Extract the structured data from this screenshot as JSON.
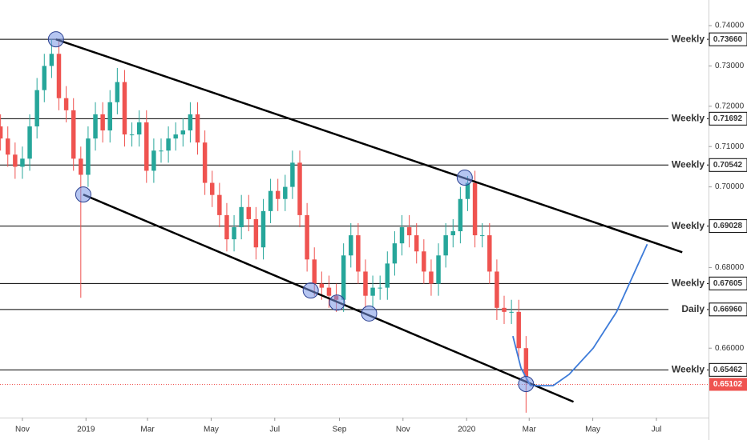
{
  "chart_data": {
    "type": "candlestick",
    "up_color": "#26a69a",
    "down_color": "#ef5350",
    "xlim": [
      -3.07,
      94
    ],
    "ylim": [
      0.64278,
      0.74635
    ],
    "xticks": [
      {
        "value": 0,
        "label": "Nov"
      },
      {
        "value": 8.71,
        "label": "2019"
      },
      {
        "value": 17.14,
        "label": "Mar"
      },
      {
        "value": 25.86,
        "label": "May"
      },
      {
        "value": 34.57,
        "label": "Jul"
      },
      {
        "value": 43.43,
        "label": "Sep"
      },
      {
        "value": 52.14,
        "label": "Nov"
      },
      {
        "value": 60.86,
        "label": "2020"
      },
      {
        "value": 69.43,
        "label": "Mar"
      },
      {
        "value": 78.14,
        "label": "May"
      },
      {
        "value": 86.86,
        "label": "Jul"
      }
    ],
    "yticks": [
      {
        "value": 0.74,
        "label": "0.74000"
      },
      {
        "value": 0.73,
        "label": "0.73000"
      },
      {
        "value": 0.72,
        "label": "0.72000"
      },
      {
        "value": 0.71,
        "label": "0.71000"
      },
      {
        "value": 0.7,
        "label": "0.70000"
      },
      {
        "value": 0.68,
        "label": "0.68000"
      },
      {
        "value": 0.66,
        "label": "0.66000"
      }
    ],
    "x": [
      -3,
      -2,
      -1,
      0,
      1,
      2,
      3,
      4,
      5,
      6,
      7,
      8,
      9,
      10,
      11,
      12,
      13,
      14,
      15,
      16,
      17,
      18,
      19,
      20,
      21,
      22,
      23,
      24,
      25,
      26,
      27,
      28,
      29,
      30,
      31,
      32,
      33,
      34,
      35,
      36,
      37,
      38,
      39,
      40,
      41,
      42,
      43,
      44,
      45,
      46,
      47,
      48,
      49,
      50,
      51,
      52,
      53,
      54,
      55,
      56,
      57,
      58,
      59,
      60,
      61,
      62,
      63,
      64,
      65,
      66,
      67,
      68,
      69
    ],
    "open": [
      0.715,
      0.712,
      0.708,
      0.705,
      0.707,
      0.715,
      0.724,
      0.73,
      0.733,
      0.722,
      0.719,
      0.707,
      0.703,
      0.712,
      0.718,
      0.714,
      0.721,
      0.726,
      0.713,
      0.713,
      0.716,
      0.704,
      0.709,
      0.709,
      0.712,
      0.713,
      0.714,
      0.718,
      0.711,
      0.701,
      0.698,
      0.693,
      0.687,
      0.69,
      0.695,
      0.692,
      0.685,
      0.694,
      0.699,
      0.697,
      0.7,
      0.706,
      0.693,
      0.682,
      0.676,
      0.675,
      0.673,
      0.672,
      0.683,
      0.688,
      0.679,
      0.673,
      0.675,
      0.675,
      0.681,
      0.686,
      0.69,
      0.688,
      0.684,
      0.679,
      0.676,
      0.683,
      0.688,
      0.689,
      0.697,
      0.701,
      0.688,
      0.688,
      0.679,
      0.67,
      0.669,
      0.669,
      0.66
    ],
    "high": [
      0.718,
      0.715,
      0.711,
      0.71,
      0.718,
      0.727,
      0.733,
      0.7366,
      0.736,
      0.725,
      0.722,
      0.71,
      0.715,
      0.721,
      0.721,
      0.724,
      0.7295,
      0.729,
      0.716,
      0.719,
      0.719,
      0.712,
      0.712,
      0.715,
      0.716,
      0.717,
      0.721,
      0.721,
      0.714,
      0.704,
      0.701,
      0.696,
      0.693,
      0.698,
      0.698,
      0.695,
      0.697,
      0.702,
      0.702,
      0.703,
      0.709,
      0.709,
      0.696,
      0.685,
      0.679,
      0.678,
      0.676,
      0.686,
      0.691,
      0.691,
      0.682,
      0.678,
      0.678,
      0.684,
      0.689,
      0.693,
      0.693,
      0.691,
      0.687,
      0.682,
      0.686,
      0.691,
      0.692,
      0.7,
      0.7027,
      0.704,
      0.691,
      0.691,
      0.682,
      0.673,
      0.672,
      0.672,
      0.663
    ],
    "low": [
      0.709,
      0.705,
      0.702,
      0.702,
      0.704,
      0.712,
      0.721,
      0.727,
      0.719,
      0.716,
      0.704,
      0.6725,
      0.7,
      0.709,
      0.711,
      0.711,
      0.718,
      0.71,
      0.71,
      0.71,
      0.701,
      0.701,
      0.706,
      0.706,
      0.709,
      0.71,
      0.711,
      0.708,
      0.698,
      0.695,
      0.69,
      0.684,
      0.684,
      0.687,
      0.689,
      0.682,
      0.682,
      0.691,
      0.694,
      0.694,
      0.697,
      0.69,
      0.679,
      0.673,
      0.672,
      0.67,
      0.669,
      0.669,
      0.68,
      0.676,
      0.67,
      0.67,
      0.672,
      0.672,
      0.678,
      0.683,
      0.685,
      0.681,
      0.676,
      0.673,
      0.673,
      0.68,
      0.685,
      0.686,
      0.694,
      0.685,
      0.685,
      0.676,
      0.667,
      0.666,
      0.666,
      0.657,
      0.644
    ],
    "close": [
      0.712,
      0.708,
      0.705,
      0.707,
      0.715,
      0.724,
      0.73,
      0.733,
      0.722,
      0.719,
      0.707,
      0.703,
      0.712,
      0.718,
      0.714,
      0.721,
      0.726,
      0.713,
      0.713,
      0.716,
      0.704,
      0.709,
      0.709,
      0.712,
      0.713,
      0.714,
      0.718,
      0.711,
      0.701,
      0.698,
      0.693,
      0.687,
      0.69,
      0.695,
      0.692,
      0.685,
      0.694,
      0.699,
      0.697,
      0.7,
      0.706,
      0.693,
      0.682,
      0.676,
      0.675,
      0.673,
      0.672,
      0.683,
      0.688,
      0.679,
      0.673,
      0.675,
      0.675,
      0.681,
      0.686,
      0.69,
      0.688,
      0.684,
      0.679,
      0.676,
      0.683,
      0.688,
      0.689,
      0.697,
      0.701,
      0.688,
      0.688,
      0.679,
      0.67,
      0.669,
      0.669,
      0.66,
      0.653
    ],
    "levels": [
      {
        "name": "Weekly",
        "value": 0.7366,
        "label": "0.73660",
        "label_color": "#1f4e8c"
      },
      {
        "name": "Weekly",
        "value": 0.71692,
        "label": "0.71692",
        "label_color": "#1f4e8c"
      },
      {
        "name": "Weekly",
        "value": 0.70542,
        "label": "0.70542",
        "label_color": "#1f4e8c"
      },
      {
        "name": "Weekly",
        "value": 0.69028,
        "label": "0.69028",
        "label_color": "#1f4e8c"
      },
      {
        "name": "Weekly",
        "value": 0.67605,
        "label": "0.67605",
        "label_color": "#1f4e8c"
      },
      {
        "name": "Daily",
        "value": 0.6696,
        "label": "0.66960",
        "label_color": "#e53935"
      },
      {
        "name": "Weekly",
        "value": 0.65462,
        "label": "0.65462",
        "label_color": "#1f4e8c"
      }
    ],
    "current_price": 0.65102,
    "trendlines": [
      {
        "x": [
          4.6,
          90.4
        ],
        "y": [
          0.7366,
          0.6838
        ]
      },
      {
        "x": [
          8.34,
          75.5
        ],
        "y": [
          0.6981,
          0.6467
        ]
      }
    ],
    "markers": {
      "x": [
        4.6,
        8.34,
        39.5,
        43.1,
        47.5,
        60.6,
        69.0
      ],
      "y": [
        0.7366,
        0.6981,
        0.6743,
        0.6713,
        0.6686,
        0.7023,
        0.6511
      ]
    },
    "projection": {
      "x": [
        67.2,
        68.3,
        69.6,
        72.7,
        74.9,
        78.2,
        81.4,
        85.6
      ],
      "y": [
        0.663,
        0.6551,
        0.6507,
        0.6507,
        0.6535,
        0.66,
        0.669,
        0.6858
      ],
      "color": "#3d7bd9"
    }
  }
}
